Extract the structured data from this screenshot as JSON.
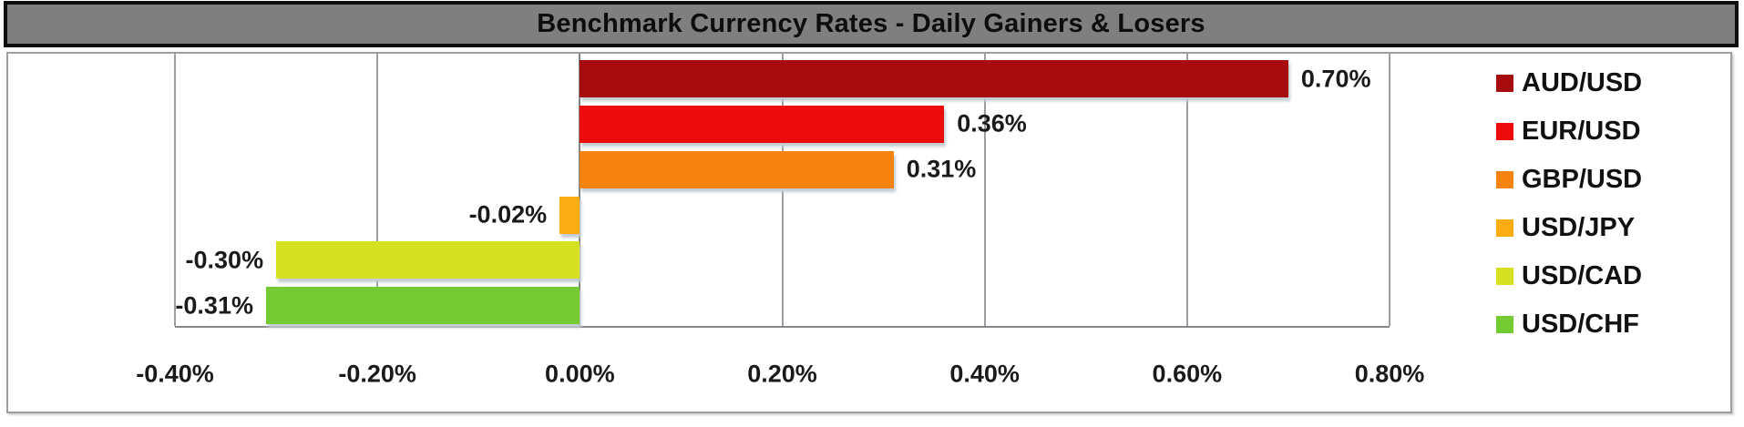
{
  "chart_data": {
    "type": "bar",
    "orientation": "horizontal",
    "title": "Benchmark Currency Rates - Daily Gainers & Losers",
    "categories": [
      "AUD/USD",
      "EUR/USD",
      "GBP/USD",
      "USD/JPY",
      "USD/CAD",
      "USD/CHF"
    ],
    "values": [
      0.7,
      0.36,
      0.31,
      -0.02,
      -0.3,
      -0.31
    ],
    "value_labels": [
      "0.70%",
      "0.36%",
      "0.31%",
      "-0.02%",
      "-0.30%",
      "-0.31%"
    ],
    "bar_colors": [
      "#A70D0F",
      "#EC0C0C",
      "#F6830F",
      "#FAAC12",
      "#D5E122",
      "#74CB31"
    ],
    "x_ticks": [
      -0.4,
      -0.2,
      0.0,
      0.2,
      0.4,
      0.6,
      0.8
    ],
    "x_tick_labels": [
      "-0.40%",
      "-0.20%",
      "0.00%",
      "0.20%",
      "0.40%",
      "0.60%",
      "0.80%"
    ],
    "xlim": [
      -0.4,
      0.8
    ],
    "xlabel": "",
    "ylabel": "",
    "grid": "vertical-only",
    "data_label_position": "outside-end",
    "legend_position": "right"
  },
  "style": {
    "title_bg": "#7F7F7F",
    "title_border": "#0E0E0E",
    "title_text": "#0D0D0D",
    "chart_border": "#9A9EA1",
    "gridline": "#9B9FA3",
    "zero_line": "#7E8285",
    "axis_line": "#85898C",
    "label_text": "#1A1A1A",
    "bar_shadow": "#C3CCD3",
    "background": "#FFFFFF"
  }
}
